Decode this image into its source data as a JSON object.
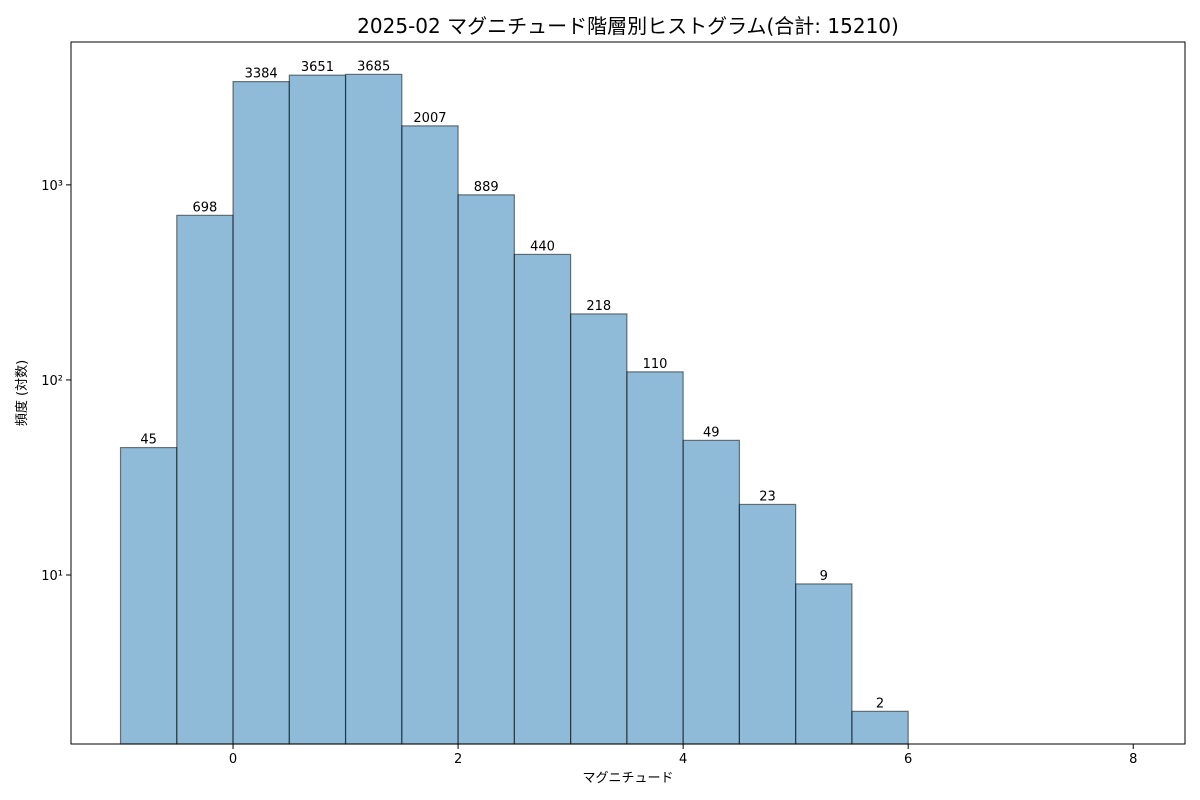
{
  "chart_data": {
    "type": "histogram",
    "title": "2025-02 マグニチュード階層別ヒストグラム(合計: 15210)",
    "xlabel": "マグニチュード",
    "ylabel": "頻度 (対数)",
    "bins": [
      -1,
      -0.5,
      0,
      0.5,
      1,
      1.5,
      2,
      2.5,
      3,
      3.5,
      4,
      4.5,
      5,
      5.5,
      6
    ],
    "counts": [
      45,
      698,
      3384,
      3651,
      3685,
      2007,
      889,
      440,
      218,
      110,
      49,
      23,
      9,
      2
    ],
    "color": "#1f77b4",
    "edgecolor": "#000000",
    "xlim": [
      -1.44,
      8.46
    ],
    "xticks": [
      0,
      2,
      4,
      6,
      8
    ],
    "ylim": [
      1.36,
      5400
    ],
    "yscale": "log",
    "yticks": [
      {
        "value": 10,
        "label": "10¹"
      },
      {
        "value": 100,
        "label": "10²"
      },
      {
        "value": 1000,
        "label": "10³"
      }
    ],
    "grid": false
  }
}
